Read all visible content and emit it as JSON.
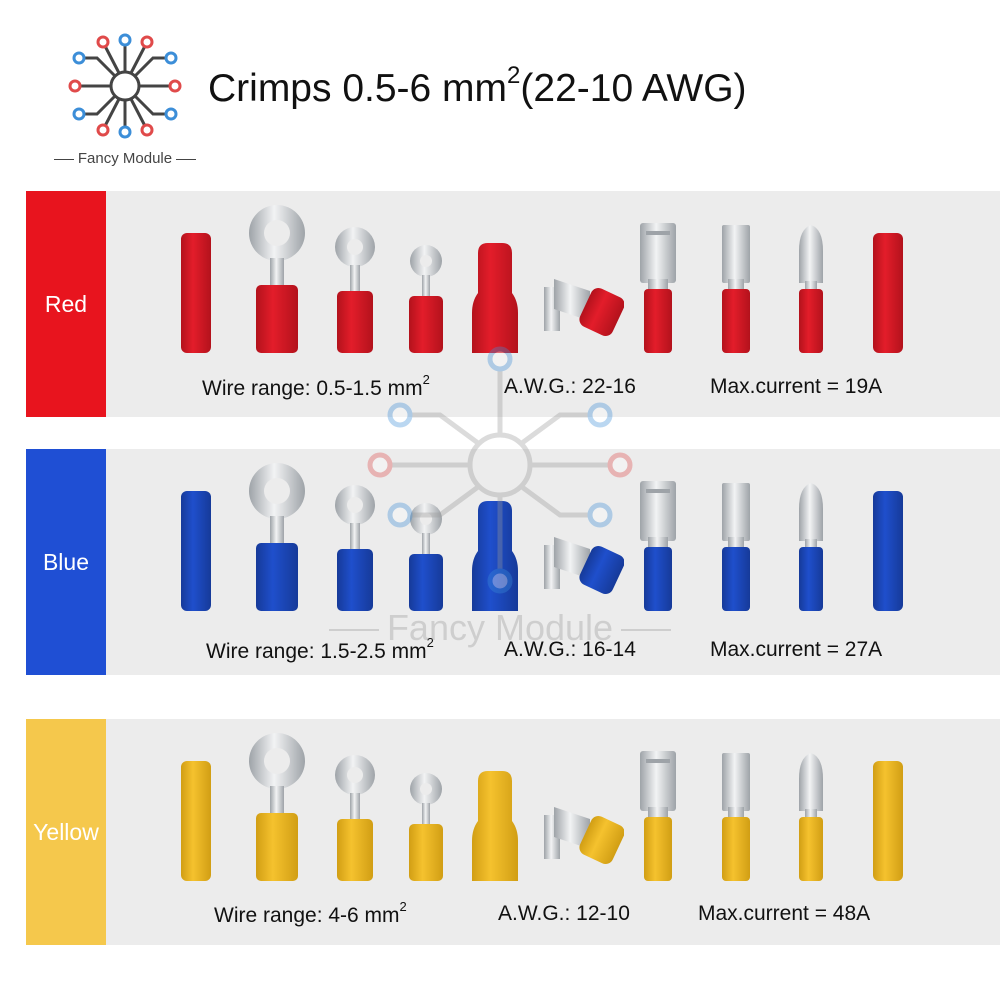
{
  "logo": {
    "brand": "Fancy Module"
  },
  "title": {
    "main": "Crimps 0.5-6 mm",
    "sup": "2",
    "tail": "(22-10 AWG)"
  },
  "rows": [
    {
      "name": "Red",
      "color": "#e8141e",
      "insulator": "#e31d2a",
      "dark": "#b3121c",
      "wire_range": "Wire range: 0.5-1.5 mm",
      "wire_sup": "2",
      "awg": "A.W.G.: 22-16",
      "current": "Max.current = 19A"
    },
    {
      "name": "Blue",
      "color": "#1f4fd4",
      "insulator": "#1f4fcc",
      "dark": "#163a99",
      "wire_range": "Wire range: 1.5-2.5 mm",
      "wire_sup": "2",
      "awg": "A.W.G.: 16-14",
      "current": "Max.current = 27A"
    },
    {
      "name": "Yellow",
      "color": "#f5c84c",
      "insulator": "#f5c22e",
      "dark": "#d19e14",
      "wire_range": "Wire range: 4-6 mm",
      "wire_sup": "2",
      "awg": "A.W.G.: 12-10",
      "current": "Max.current = 48A"
    }
  ],
  "icons": [
    "circuit-logo-icon",
    "butt-connector-icon",
    "ring-terminal-icon",
    "female-disconnect-icon",
    "piggyback-connector-icon",
    "spade-female-icon",
    "spade-male-icon",
    "bullet-connector-icon"
  ]
}
